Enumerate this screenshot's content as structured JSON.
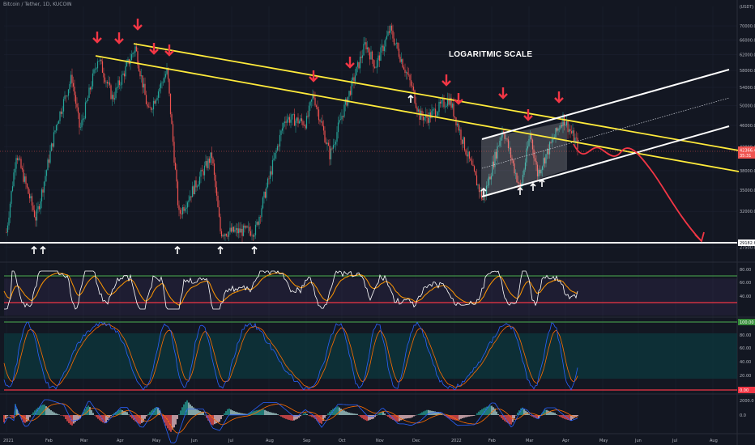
{
  "header": {
    "symbol_title": "Bitcoin / Tether, 1D, KUCOIN",
    "annotation": "LOGARITMIC SCALE",
    "unit": "USDT"
  },
  "chart_data": [
    {
      "type": "line",
      "panel": "price",
      "log_scale": true,
      "x_ticks": [
        "2021",
        "Feb",
        "Mar",
        "Apr",
        "May",
        "Jun",
        "Jul",
        "Aug",
        "Sep",
        "Oct",
        "Nov",
        "Dec",
        "2022",
        "Feb",
        "Mar",
        "Apr",
        "May",
        "Jun",
        "Jul",
        "Aug"
      ],
      "y_ticks": [
        "70000.0",
        "66000.0",
        "62000.0",
        "58000.0",
        "54000.0",
        "50000.0",
        "46000.0",
        "42000.0",
        "38000.0",
        "35000.0",
        "32000.0",
        "29182.6",
        "27500.0"
      ],
      "ylim": [
        26000,
        76000
      ],
      "last_price": "42366.4",
      "last_price_sub": "35:31",
      "support_level": "29182.6",
      "price_series": [
        [
          "2021",
          29300
        ],
        [
          "Jan 8",
          41000
        ],
        [
          "Jan 22",
          31000
        ],
        [
          "Feb 8",
          46500
        ],
        [
          "Feb 21",
          56500
        ],
        [
          "Feb 28",
          45000
        ],
        [
          "Mar 13",
          61500
        ],
        [
          "Mar 25",
          51500
        ],
        [
          "Apr 14",
          64000
        ],
        [
          "Apr 25",
          48500
        ],
        [
          "May 10",
          58000
        ],
        [
          "May 19",
          31500
        ],
        [
          "Jun 15",
          40500
        ],
        [
          "Jun 22",
          29300
        ],
        [
          "Jul 20",
          29500
        ],
        [
          "Aug 14",
          47500
        ],
        [
          "Aug 31",
          46500
        ],
        [
          "Sep 7",
          52500
        ],
        [
          "Sep 21",
          40500
        ],
        [
          "Oct 1",
          48000
        ],
        [
          "Oct 20",
          65000
        ],
        [
          "Oct 28",
          59000
        ],
        [
          "Nov 10",
          69000
        ],
        [
          "Nov 28",
          54000
        ],
        [
          "Dec 4",
          48000
        ],
        [
          "Dec 10",
          47500
        ],
        [
          "Dec 27",
          51500
        ],
        [
          "Jan 10",
          41500
        ],
        [
          "Jan 24",
          33500
        ],
        [
          "Feb 10",
          45500
        ],
        [
          "Feb 24",
          35000
        ],
        [
          "Mar 2",
          44500
        ],
        [
          "Mar 8",
          37500
        ],
        [
          "Mar 29",
          47500
        ],
        [
          "Apr 11",
          42366
        ]
      ]
    },
    {
      "type": "line",
      "panel": "rsi",
      "y_ticks": [
        "80.00",
        "60.00",
        "40.00"
      ],
      "ylim": [
        30,
        85
      ]
    },
    {
      "type": "line",
      "panel": "stoch_rsi",
      "y_ticks": [
        "100.00",
        "80.00",
        "60.00",
        "40.00",
        "20.00",
        "0.00"
      ],
      "ylim": [
        0,
        100
      ]
    },
    {
      "type": "bar",
      "panel": "macd",
      "y_ticks": [
        "2000.0",
        "0.0"
      ],
      "ylim": [
        -2000,
        2200
      ]
    }
  ],
  "colors": {
    "background": "#131722",
    "up": "#26a69a",
    "down": "#ef5350",
    "trendline": "#ffeb3b",
    "channel": "#ffffff",
    "arrow_red": "#f23645",
    "rsi_line": "#ffffff",
    "rsi_ma": "#ff9800",
    "stoch_k": "#2962ff",
    "stoch_d": "#ff6d00",
    "band": "#0c3a3f"
  }
}
